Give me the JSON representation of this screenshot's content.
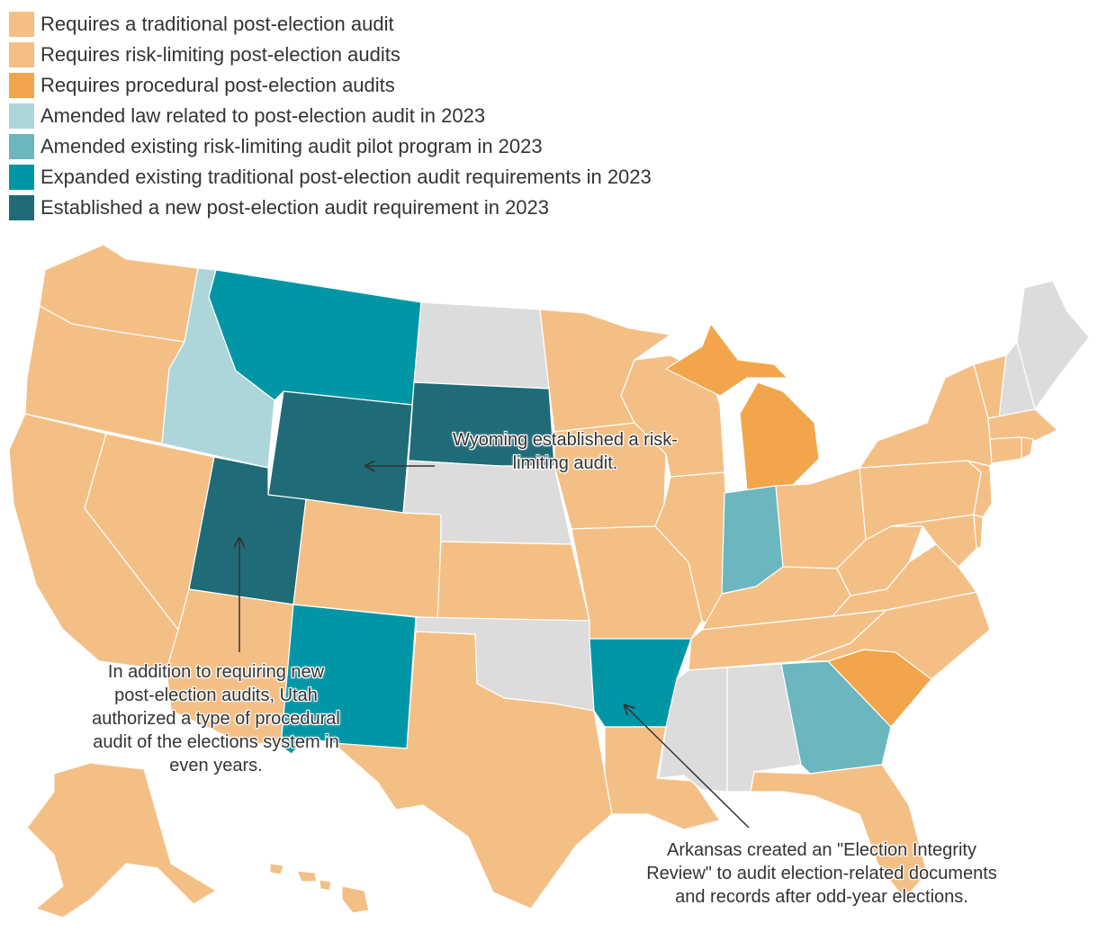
{
  "colors": {
    "traditional": "#f4bf85",
    "risk_limiting": "#f4bf85",
    "procedural": "#f2a54a",
    "amended_law": "#acd6da",
    "amended_pilot": "#6cb6c0",
    "expanded": "#0096a6",
    "established": "#206b78",
    "none": "#dcdcdc",
    "border": "#ffffff",
    "arrow": "#333333"
  },
  "legend": [
    {
      "label": "Requires a traditional post-election audit",
      "color": "#f4bf85"
    },
    {
      "label": "Requires risk-limiting post-election audits",
      "color": "#f4bf85"
    },
    {
      "label": "Requires procedural post-election audits",
      "color": "#f2a54a"
    },
    {
      "label": "Amended law related to post-election audit in 2023",
      "color": "#acd6da"
    },
    {
      "label": "Amended existing risk-limiting audit pilot program in 2023",
      "color": "#6cb6c0"
    },
    {
      "label": "Expanded existing traditional post-election audit requirements in 2023",
      "color": "#0096a6"
    },
    {
      "label": "Established a new post-election audit requirement in 2023",
      "color": "#206b78"
    }
  ],
  "annotations": {
    "wyoming": "Wyoming established a risk-limiting audit.",
    "utah": "In addition to requiring new post-election audits, Utah authorized a type of procedural audit of the elections system in even years.",
    "arkansas": "Arkansas created an \"Election Integrity Review\" to audit election-related documents and records after odd-year elections."
  }
}
